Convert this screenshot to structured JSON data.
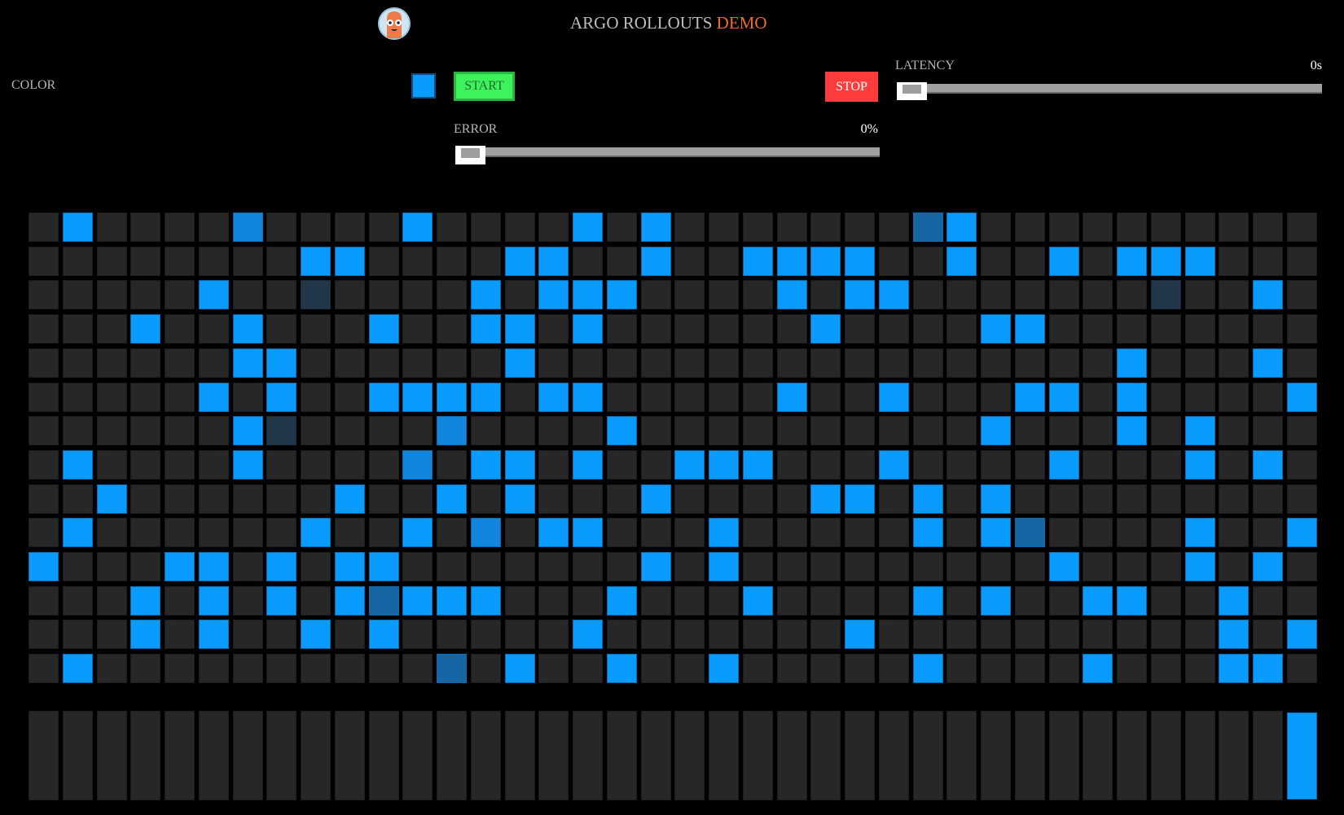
{
  "header": {
    "title_main": "ARGO ROLLOUTS",
    "title_accent": "DEMO",
    "logo": "argo-mascot-logo"
  },
  "controls": {
    "color_label": "COLOR",
    "color_value": "#0a9bff",
    "start_label": "START",
    "stop_label": "STOP",
    "latency_label": "LATENCY",
    "latency_value": "0s",
    "latency_level": 0,
    "error_label": "ERROR",
    "error_value": "0%",
    "error_level": 0
  },
  "colors": {
    "empty": "#272727",
    "B": "#0a9bff",
    "m": "#1186dc",
    "d": "#1666a3",
    "s": "#22384a",
    "start": "#3df25b",
    "stop": "#ff3c3c",
    "accent": "#f26b2a"
  },
  "grid": {
    "columns": 38,
    "rows": [
      {
        "B": [
          1,
          11,
          16,
          18,
          27
        ],
        "m": [
          6
        ],
        "d": [
          26
        ],
        "s": []
      },
      {
        "B": [
          8,
          9,
          14,
          15,
          18,
          21,
          22,
          23,
          24,
          27,
          30,
          32,
          33,
          34
        ],
        "m": [],
        "d": [],
        "s": []
      },
      {
        "B": [
          5,
          13,
          15,
          16,
          17,
          22,
          24,
          25,
          36
        ],
        "m": [],
        "d": [],
        "s": [
          8,
          33
        ]
      },
      {
        "B": [
          3,
          6,
          10,
          13,
          14,
          16,
          23,
          28,
          29
        ],
        "m": [],
        "d": [],
        "s": []
      },
      {
        "B": [
          6,
          7,
          14,
          32,
          36
        ],
        "m": [],
        "d": [],
        "s": []
      },
      {
        "B": [
          5,
          7,
          10,
          11,
          12,
          13,
          15,
          16,
          22,
          25,
          29,
          30,
          32,
          37
        ],
        "m": [],
        "d": [],
        "s": []
      },
      {
        "B": [
          6,
          17,
          28,
          32,
          34
        ],
        "m": [
          12
        ],
        "d": [],
        "s": [
          7
        ]
      },
      {
        "B": [
          1,
          6,
          13,
          14,
          16,
          19,
          20,
          21,
          25,
          30,
          34,
          36
        ],
        "m": [
          11
        ],
        "d": [],
        "s": []
      },
      {
        "B": [
          2,
          9,
          12,
          14,
          18,
          23,
          24,
          26,
          28
        ],
        "m": [],
        "d": [],
        "s": []
      },
      {
        "B": [
          1,
          8,
          11,
          15,
          16,
          20,
          26,
          28,
          34,
          37
        ],
        "m": [
          13
        ],
        "d": [
          29
        ],
        "s": []
      },
      {
        "B": [
          0,
          4,
          5,
          7,
          9,
          10,
          18,
          20,
          30,
          34,
          36
        ],
        "m": [],
        "d": [],
        "s": []
      },
      {
        "B": [
          3,
          5,
          7,
          9,
          11,
          12,
          13,
          17,
          21,
          26,
          28,
          31,
          32,
          35
        ],
        "m": [],
        "d": [
          10
        ],
        "s": []
      },
      {
        "B": [
          3,
          5,
          8,
          10,
          16,
          24,
          35,
          37
        ],
        "m": [],
        "d": [],
        "s": []
      },
      {
        "B": [
          1,
          14,
          17,
          20,
          26,
          31,
          35,
          36
        ],
        "m": [],
        "d": [
          12
        ],
        "s": []
      }
    ]
  },
  "bars": {
    "count": 38,
    "filled": [
      37
    ]
  }
}
